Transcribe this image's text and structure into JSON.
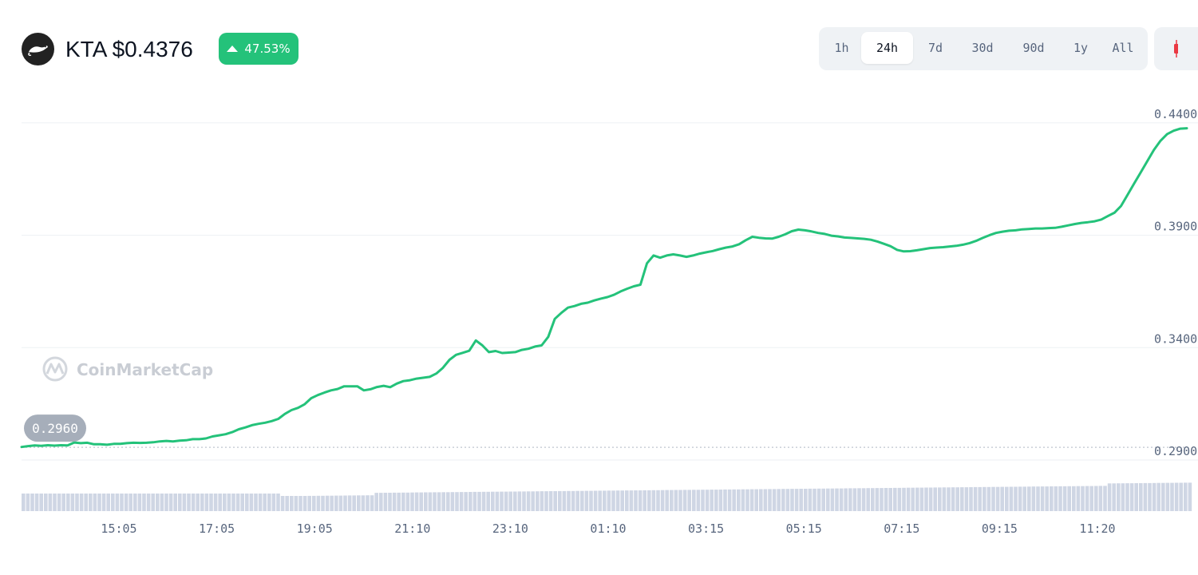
{
  "header": {
    "coin_label": "KTA $0.4376",
    "change_pct": "47.53%",
    "icon": "ferret-logo-icon",
    "accent_color": "#24c27a"
  },
  "timeframes": [
    {
      "label": "1h",
      "active": false
    },
    {
      "label": "24h",
      "active": true
    },
    {
      "label": "7d",
      "active": false
    },
    {
      "label": "30d",
      "active": false
    },
    {
      "label": "90d",
      "active": false
    },
    {
      "label": "1y",
      "active": false
    },
    {
      "label": "All",
      "active": false
    }
  ],
  "chart_type_toggle_icon": "candlestick-icon",
  "watermark": "CoinMarketCap",
  "chart_data": {
    "type": "line",
    "title": "",
    "xlabel": "",
    "ylabel": "",
    "open_price_label": "0.2960",
    "open_price": 0.296,
    "ylim": [
      0.2893,
      0.4442
    ],
    "yticks": [
      "0.4400",
      "0.3900",
      "0.3400",
      "0.2900"
    ],
    "xticks": [
      "15:05",
      "17:05",
      "19:05",
      "21:10",
      "23:10",
      "01:10",
      "03:15",
      "05:15",
      "07:15",
      "09:15",
      "11:20"
    ],
    "line_color": "#24c27a",
    "grid": true,
    "series": [
      {
        "values": [
          0.2958,
          0.2962,
          0.2965,
          0.2963,
          0.2966,
          0.2964,
          0.2966,
          0.2965,
          0.2978,
          0.2975,
          0.2977,
          0.297,
          0.297,
          0.2968,
          0.2972,
          0.2972,
          0.2975,
          0.2977,
          0.2976,
          0.2977,
          0.2979,
          0.2983,
          0.2985,
          0.2983,
          0.2986,
          0.2988,
          0.2993,
          0.2993,
          0.2996,
          0.3005,
          0.301,
          0.3015,
          0.3024,
          0.3037,
          0.3045,
          0.3055,
          0.3061,
          0.3066,
          0.3073,
          0.3083,
          0.3105,
          0.3122,
          0.3132,
          0.3148,
          0.3175,
          0.3189,
          0.32,
          0.321,
          0.3216,
          0.3228,
          0.3228,
          0.3228,
          0.321,
          0.3215,
          0.3225,
          0.323,
          0.3224,
          0.324,
          0.3251,
          0.3255,
          0.3262,
          0.3266,
          0.327,
          0.3285,
          0.331,
          0.3346,
          0.3368,
          0.3377,
          0.3386,
          0.3432,
          0.341,
          0.338,
          0.3385,
          0.3376,
          0.3378,
          0.338,
          0.339,
          0.3395,
          0.3405,
          0.341,
          0.3448,
          0.3528,
          0.3555,
          0.3578,
          0.3585,
          0.3595,
          0.36,
          0.361,
          0.3618,
          0.3625,
          0.3635,
          0.365,
          0.3662,
          0.3673,
          0.368,
          0.3775,
          0.381,
          0.38,
          0.381,
          0.3815,
          0.381,
          0.3804,
          0.381,
          0.3818,
          0.3824,
          0.383,
          0.3838,
          0.3845,
          0.385,
          0.386,
          0.3878,
          0.3893,
          0.3889,
          0.3886,
          0.3885,
          0.3893,
          0.3904,
          0.3918,
          0.3925,
          0.3922,
          0.3917,
          0.391,
          0.3906,
          0.3898,
          0.3895,
          0.389,
          0.3888,
          0.3886,
          0.3884,
          0.388,
          0.3872,
          0.3862,
          0.3851,
          0.3835,
          0.3828,
          0.3829,
          0.3833,
          0.3838,
          0.3843,
          0.3845,
          0.3847,
          0.385,
          0.3853,
          0.3858,
          0.3865,
          0.3875,
          0.3888,
          0.39,
          0.391,
          0.3916,
          0.392,
          0.3922,
          0.3926,
          0.3928,
          0.393,
          0.393,
          0.3932,
          0.3933,
          0.3938,
          0.3944,
          0.395,
          0.3955,
          0.3958,
          0.3962,
          0.397,
          0.3985,
          0.4,
          0.403,
          0.408,
          0.413,
          0.418,
          0.423,
          0.428,
          0.432,
          0.435,
          0.4365,
          0.4374,
          0.4376
        ]
      }
    ],
    "volume_bars_color": "#cfd6e4"
  }
}
